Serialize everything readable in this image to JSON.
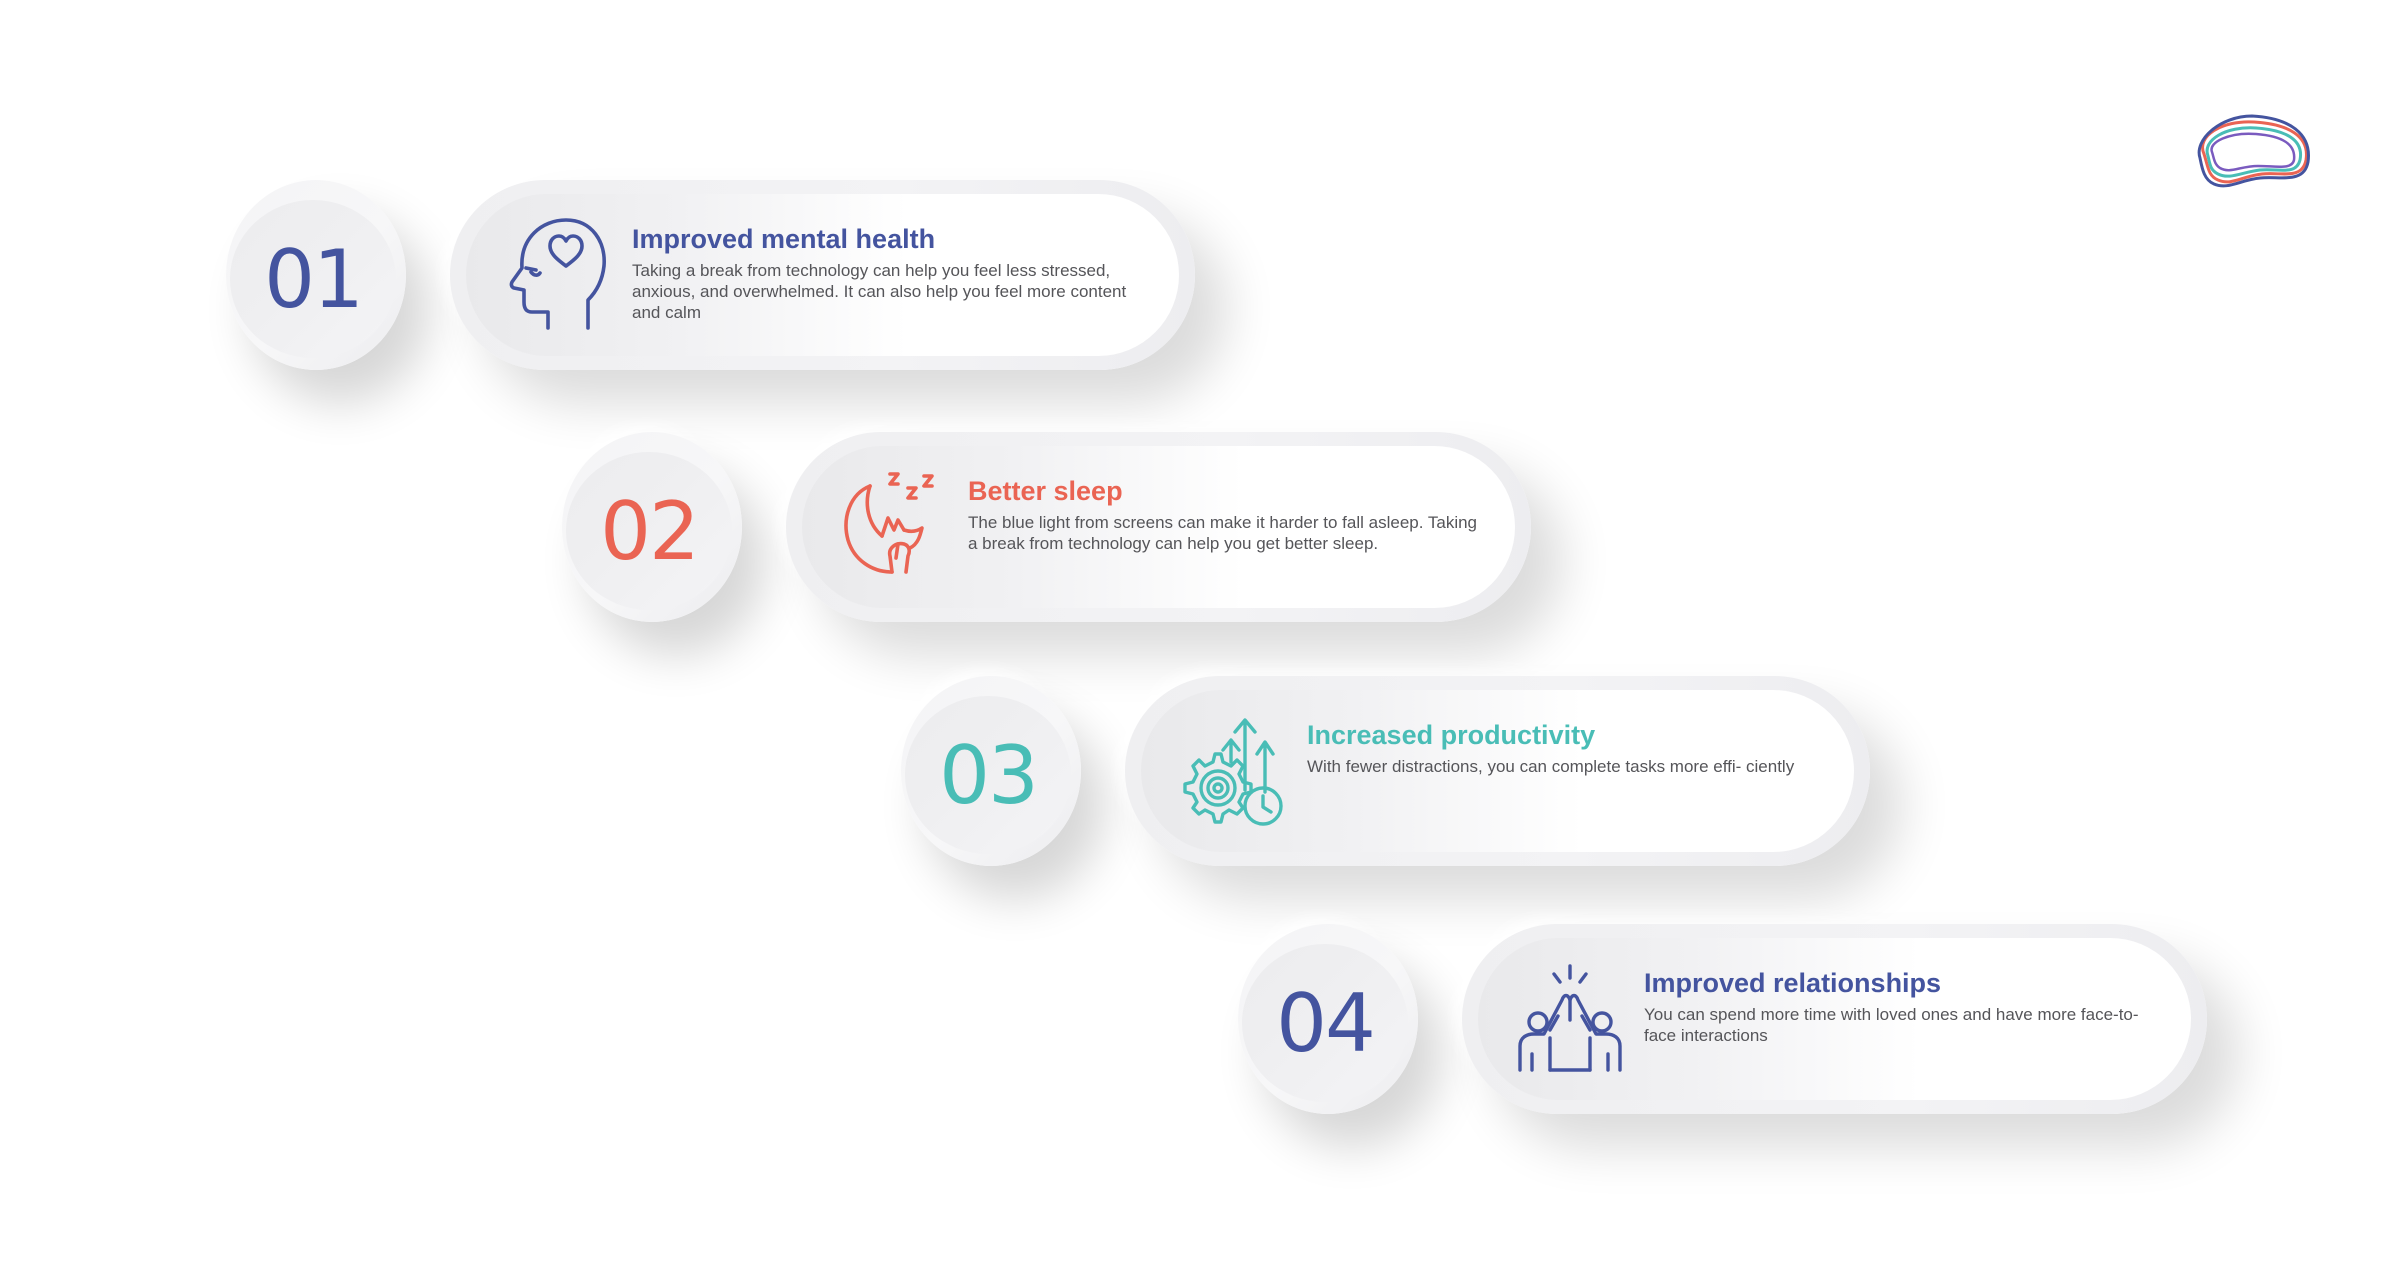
{
  "brand": {
    "logo_icon": "brain-outline-logo",
    "colors": {
      "blue": "#44549f",
      "red": "#ea6453",
      "teal": "#49bdb6",
      "purple": "#7a5bbf"
    }
  },
  "benefits": [
    {
      "number": "01",
      "title": "Improved mental health",
      "description": "Taking a break from technology can help you feel less stressed, anxious, and overwhelmed. It can also help you feel more content and calm",
      "icon": "head-heart-icon",
      "color": "#44549f"
    },
    {
      "number": "02",
      "title": "Better sleep",
      "description": "The blue light from screens can make it harder to fall asleep. Taking a break from technology can help you get better sleep.",
      "icon": "moon-sleep-icon",
      "color": "#ea6453"
    },
    {
      "number": "03",
      "title": "Increased productivity",
      "description": "With fewer distractions, you can complete tasks more effi- ciently",
      "icon": "gear-growth-clock-icon",
      "color": "#49bdb6"
    },
    {
      "number": "04",
      "title": "Improved relationships",
      "description": "You can spend more time with loved ones and have more face-to-face interactions",
      "icon": "high-five-icon",
      "color": "#44549f"
    }
  ]
}
